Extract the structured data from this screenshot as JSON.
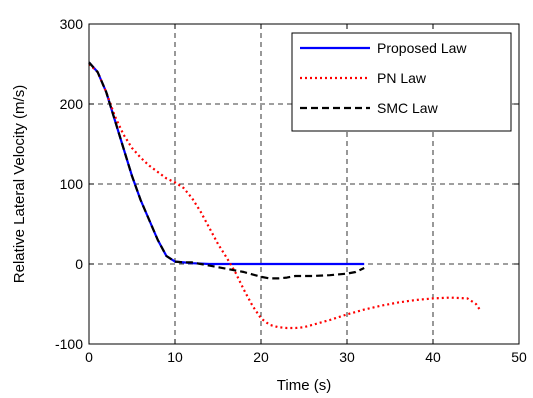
{
  "chart_data": {
    "type": "line",
    "title": "",
    "xlabel": "Time (s)",
    "ylabel": "Relative Lateral Velocity (m/s)",
    "xlim": [
      0,
      50
    ],
    "ylim": [
      -100,
      300
    ],
    "xticks": [
      "0",
      "10",
      "20",
      "30",
      "40",
      "50"
    ],
    "yticks": [
      "-100",
      "0",
      "100",
      "200",
      "300"
    ],
    "grid": true,
    "legend_position": "top-right",
    "series": [
      {
        "name": "Proposed Law",
        "color": "#0000ff",
        "style": "solid",
        "x": [
          0,
          1,
          2,
          3,
          4,
          5,
          6,
          7,
          8,
          9,
          10,
          11,
          12,
          14,
          16,
          20,
          25,
          30,
          32
        ],
        "y": [
          252,
          240,
          215,
          180,
          145,
          110,
          80,
          55,
          30,
          10,
          3,
          2,
          1,
          0,
          0,
          0,
          0,
          0,
          0
        ]
      },
      {
        "name": "PN Law",
        "color": "#ff0000",
        "style": "dotted",
        "x": [
          0,
          1,
          2,
          3,
          4,
          5,
          6,
          7,
          8,
          9,
          10,
          11,
          12,
          13,
          14,
          15,
          16,
          17,
          18,
          19,
          20,
          21,
          22,
          23,
          24,
          25,
          26,
          28,
          30,
          32,
          34,
          36,
          38,
          40,
          42,
          44,
          45,
          45.5
        ],
        "y": [
          250,
          240,
          215,
          185,
          162,
          145,
          133,
          123,
          115,
          107,
          102,
          95,
          82,
          65,
          45,
          25,
          8,
          -10,
          -32,
          -52,
          -68,
          -76,
          -79,
          -80,
          -80,
          -79,
          -76,
          -70,
          -63,
          -57,
          -52,
          -48,
          -45,
          -43,
          -42,
          -43,
          -50,
          -58
        ]
      },
      {
        "name": "SMC Law",
        "color": "#000000",
        "style": "dashed",
        "x": [
          0,
          1,
          2,
          3,
          4,
          5,
          6,
          7,
          8,
          9,
          10,
          11,
          12,
          13,
          14,
          15,
          16,
          17,
          18,
          19,
          20,
          21,
          22,
          23,
          24,
          26,
          28,
          30,
          31,
          32
        ],
        "y": [
          252,
          240,
          215,
          180,
          145,
          110,
          80,
          55,
          30,
          10,
          3,
          2,
          2,
          0,
          -2,
          -4,
          -6,
          -8,
          -10,
          -13,
          -16,
          -18,
          -18,
          -17,
          -15,
          -15,
          -14,
          -12,
          -10,
          -5
        ]
      }
    ]
  }
}
